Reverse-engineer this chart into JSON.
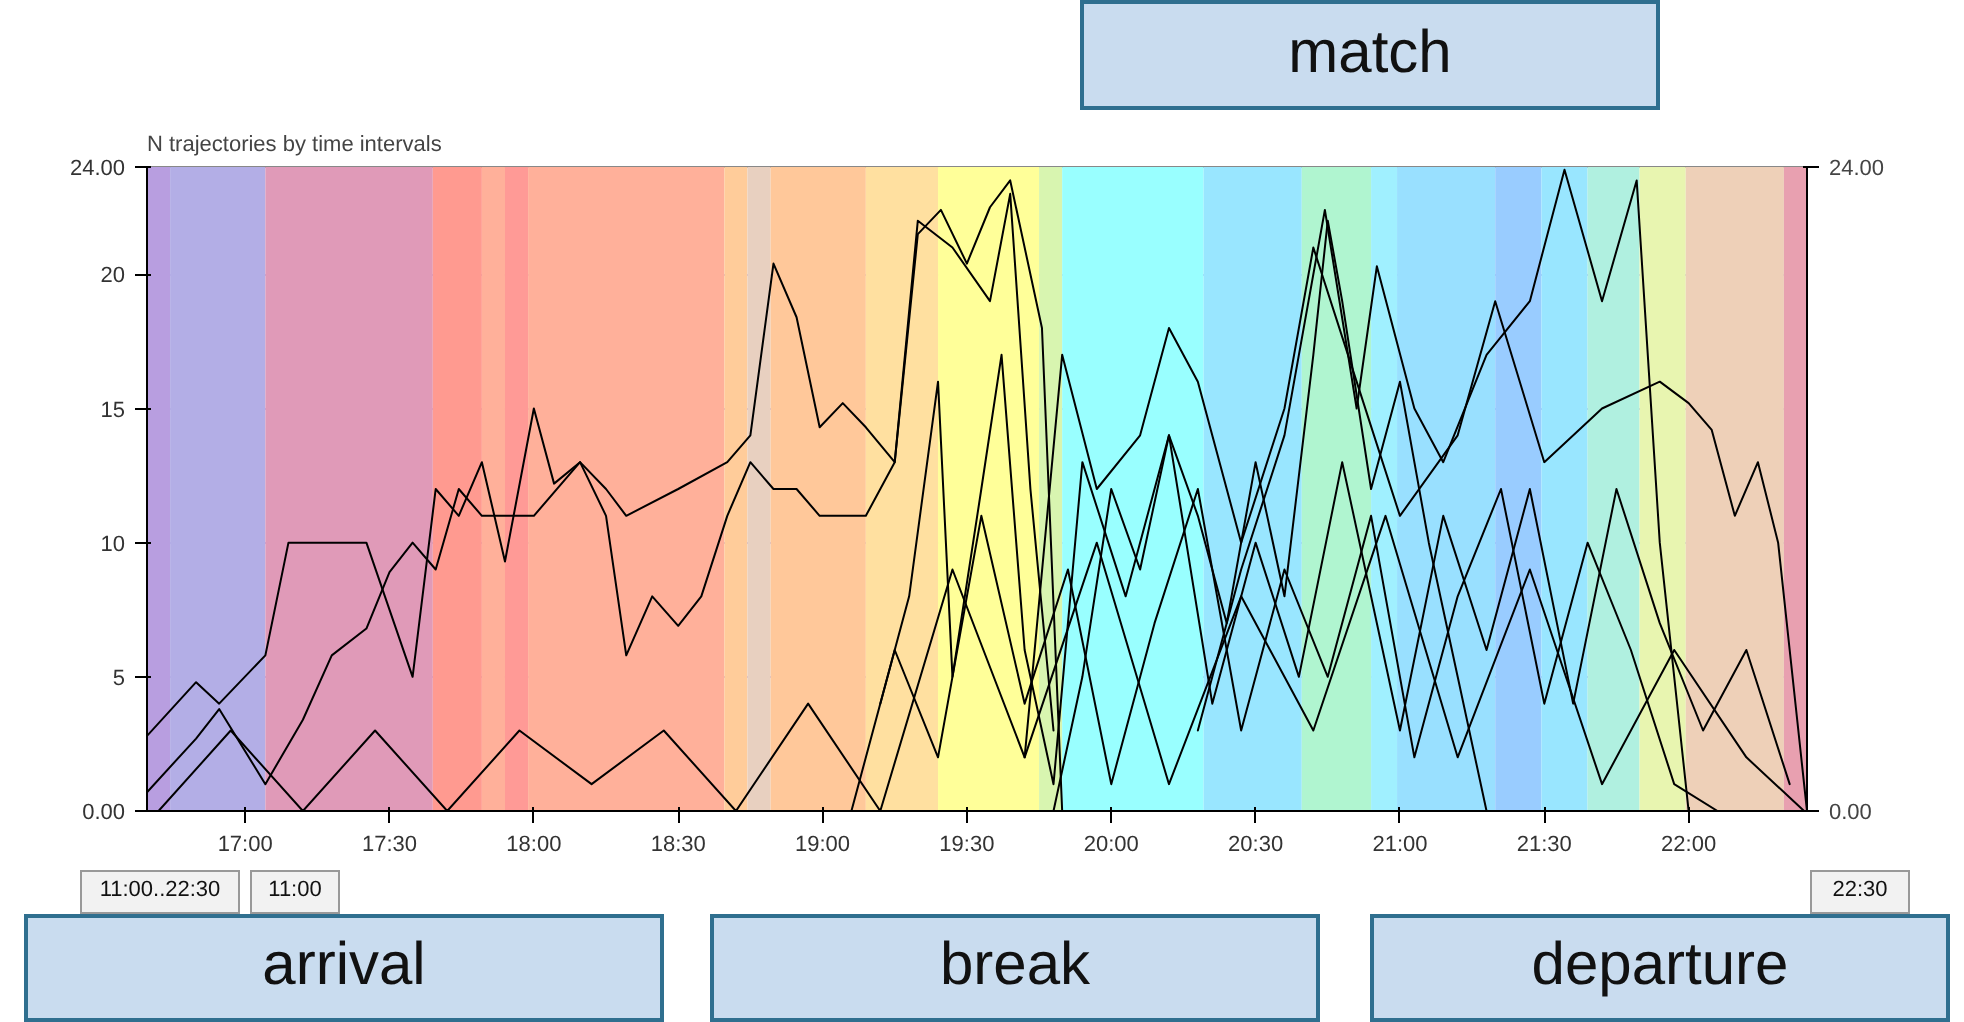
{
  "chart_data": {
    "type": "line",
    "title": "N trajectories by time intervals",
    "xlim": [
      16.66,
      22.41
    ],
    "ylim": [
      0,
      24
    ],
    "y2lim": [
      0,
      24
    ],
    "xticks": [
      {
        "value": 17,
        "label": "17:00"
      },
      {
        "value": 17.5,
        "label": "17:30"
      },
      {
        "value": 18,
        "label": "18:00"
      },
      {
        "value": 18.5,
        "label": "18:30"
      },
      {
        "value": 19,
        "label": "19:00"
      },
      {
        "value": 19.5,
        "label": "19:30"
      },
      {
        "value": 20,
        "label": "20:00"
      },
      {
        "value": 20.5,
        "label": "20:30"
      },
      {
        "value": 21,
        "label": "21:00"
      },
      {
        "value": 21.5,
        "label": "21:30"
      },
      {
        "value": 22,
        "label": "22:00"
      }
    ],
    "yticks": [
      {
        "value": 0,
        "label": "0.00"
      },
      5,
      10,
      15,
      20,
      {
        "value": 24,
        "label": "24.00"
      }
    ],
    "y2ticks": [
      {
        "value": 0,
        "label": "0.00"
      },
      {
        "value": 24,
        "label": "24.00"
      }
    ],
    "grid": "y",
    "series": [
      {
        "color": "#000000",
        "x": [
          16.66,
          16.83,
          16.91,
          17.07,
          17.15,
          17.42,
          17.58,
          17.66,
          17.74,
          17.82,
          17.9,
          18.0,
          18.07,
          18.16,
          18.25,
          18.32,
          18.41,
          18.5,
          18.58,
          18.67,
          18.75,
          18.83,
          18.91,
          18.99,
          19.15,
          19.25,
          19.33,
          19.41,
          19.5,
          19.58,
          19.65,
          19.76,
          19.83
        ],
        "values": [
          2.8,
          4.8,
          4,
          5.8,
          10,
          10,
          5,
          12,
          11,
          13,
          9.3,
          15,
          12.2,
          13,
          11,
          5.8,
          8,
          6.9,
          8,
          11,
          13,
          12,
          12,
          11,
          11,
          13,
          21.5,
          22.4,
          20.4,
          22.5,
          23.5,
          18,
          0
        ]
      },
      {
        "color": "#000000",
        "x": [
          16.66,
          16.83,
          16.91,
          17.07,
          17.2,
          17.3,
          17.42,
          17.5,
          17.58,
          17.66,
          17.74,
          17.82,
          17.9,
          18.0,
          18.16,
          18.25,
          18.32,
          18.5,
          18.67,
          18.75,
          18.83,
          18.91,
          18.99,
          19.07,
          19.15,
          19.25,
          19.33,
          19.45,
          19.58,
          19.65,
          19.72,
          19.8
        ],
        "values": [
          0.7,
          2.7,
          3.8,
          1,
          3.4,
          5.8,
          6.8,
          8.9,
          10,
          9,
          12,
          11,
          11,
          11,
          13,
          12,
          11,
          12,
          13,
          14,
          20.4,
          18.4,
          14.3,
          15.2,
          14.3,
          13,
          22,
          21,
          19,
          23,
          12,
          3
        ]
      },
      {
        "color": "#000000",
        "x": [
          19.8,
          19.9,
          20.0,
          20.1,
          20.2,
          20.3,
          20.4,
          20.5,
          20.6,
          20.7,
          20.75,
          20.8,
          20.9,
          21.0,
          21.1,
          21.2,
          21.3
        ],
        "values": [
          0,
          5,
          12,
          9,
          14,
          11,
          7,
          13,
          8,
          17,
          22,
          19,
          12,
          16,
          10,
          5,
          0
        ]
      },
      {
        "color": "#000000",
        "x": [
          20.3,
          20.45,
          20.6,
          20.74,
          20.85,
          20.92,
          21.05,
          21.15,
          21.3,
          21.45,
          21.57,
          21.7,
          21.82,
          21.9,
          22.0
        ],
        "values": [
          3,
          9,
          14,
          22.4,
          15,
          20.3,
          15,
          13,
          17,
          19,
          23.9,
          19,
          23.5,
          10,
          0
        ]
      },
      {
        "color": "#000000",
        "x": [
          19.7,
          19.83,
          19.95,
          20.1,
          20.2,
          20.3,
          20.45,
          20.6,
          20.7,
          20.85,
          21.0,
          21.2,
          21.33,
          21.5,
          21.7,
          21.9,
          22.0,
          22.08,
          22.16,
          22.24,
          22.31,
          22.41
        ],
        "values": [
          2,
          17,
          12,
          14,
          18,
          16,
          10,
          15,
          21,
          16,
          11,
          14,
          19,
          13,
          15,
          16,
          15.2,
          14.2,
          11,
          13,
          10,
          0
        ]
      },
      {
        "color": "#000000",
        "x": [
          19.2,
          19.3,
          19.4,
          19.45,
          19.55,
          19.62,
          19.7,
          19.8,
          19.9,
          20.05,
          20.2,
          20.35,
          20.5,
          20.65,
          20.8,
          21.0,
          21.15,
          21.3,
          21.45,
          21.6,
          21.75,
          21.9,
          22.05,
          22.2,
          22.35
        ],
        "values": [
          4,
          8,
          16,
          5,
          12,
          17,
          6,
          1,
          13,
          8,
          14,
          4,
          10,
          5,
          13,
          3,
          11,
          6,
          12,
          4,
          12,
          7,
          3,
          6,
          1
        ]
      },
      {
        "color": "#000000",
        "x": [
          16.7,
          16.95,
          17.2,
          17.45,
          17.7,
          17.95,
          18.2,
          18.45,
          18.7,
          18.95,
          19.2,
          19.45,
          19.7,
          19.95,
          20.2,
          20.45,
          20.7,
          20.95,
          21.2,
          21.45,
          21.7,
          21.95,
          22.2,
          22.4
        ],
        "values": [
          0,
          3,
          0,
          3,
          0,
          3,
          1,
          3,
          0,
          4,
          0,
          9,
          2,
          10,
          1,
          8,
          3,
          11,
          2,
          9,
          1,
          6,
          2,
          0
        ]
      },
      {
        "color": "#000000",
        "x": [
          19.1,
          19.25,
          19.4,
          19.55,
          19.7,
          19.85,
          20.0,
          20.15,
          20.3,
          20.45,
          20.6,
          20.75,
          20.9,
          21.05,
          21.2,
          21.35,
          21.5,
          21.65,
          21.8,
          21.95,
          22.1
        ],
        "values": [
          0,
          6,
          2,
          11,
          4,
          9,
          1,
          7,
          12,
          3,
          9,
          5,
          11,
          2,
          8,
          12,
          4,
          10,
          6,
          1,
          0
        ]
      }
    ],
    "bands": [
      {
        "axis": "x",
        "from": 16.66,
        "to": 16.74,
        "color": "#b89ee0"
      },
      {
        "axis": "x",
        "from": 16.74,
        "to": 17.07,
        "color": "#b3aee6"
      },
      {
        "axis": "x",
        "from": 17.07,
        "to": 17.65,
        "color": "#e09ab8"
      },
      {
        "axis": "x",
        "from": 17.65,
        "to": 17.82,
        "color": "#ff9a90"
      },
      {
        "axis": "x",
        "from": 17.82,
        "to": 17.9,
        "color": "#ffb09a"
      },
      {
        "axis": "x",
        "from": 17.9,
        "to": 17.98,
        "color": "#ff9a96"
      },
      {
        "axis": "x",
        "from": 17.98,
        "to": 18.66,
        "color": "#ffb09a"
      },
      {
        "axis": "x",
        "from": 18.66,
        "to": 18.74,
        "color": "#ffcc9a"
      },
      {
        "axis": "x",
        "from": 18.74,
        "to": 18.82,
        "color": "#e8d0c0"
      },
      {
        "axis": "x",
        "from": 18.82,
        "to": 19.15,
        "color": "#ffc89a"
      },
      {
        "axis": "x",
        "from": 19.15,
        "to": 19.4,
        "color": "#ffe0a0"
      },
      {
        "axis": "x",
        "from": 19.4,
        "to": 19.75,
        "color": "#ffff99"
      },
      {
        "axis": "x",
        "from": 19.75,
        "to": 19.83,
        "color": "#d8f5b0"
      },
      {
        "axis": "x",
        "from": 19.83,
        "to": 20.32,
        "color": "#99ffff"
      },
      {
        "axis": "x",
        "from": 20.32,
        "to": 20.66,
        "color": "#99e6ff"
      },
      {
        "axis": "x",
        "from": 20.66,
        "to": 20.9,
        "color": "#b0f5d0"
      },
      {
        "axis": "x",
        "from": 20.9,
        "to": 20.99,
        "color": "#a0f0ff"
      },
      {
        "axis": "x",
        "from": 20.99,
        "to": 21.33,
        "color": "#99e0ff"
      },
      {
        "axis": "x",
        "from": 21.33,
        "to": 21.49,
        "color": "#99ccff"
      },
      {
        "axis": "x",
        "from": 21.49,
        "to": 21.65,
        "color": "#99e6ff"
      },
      {
        "axis": "x",
        "from": 21.65,
        "to": 21.83,
        "color": "#b0f0e0"
      },
      {
        "axis": "x",
        "from": 21.83,
        "to": 21.99,
        "color": "#e8f5b0"
      },
      {
        "axis": "x",
        "from": 21.99,
        "to": 22.33,
        "color": "#eed0b8"
      },
      {
        "axis": "x",
        "from": 22.33,
        "to": 22.41,
        "color": "#e8a0b0"
      }
    ],
    "annotations": [
      "match",
      "arrival",
      "break",
      "departure",
      "11:00..22:30",
      "11:00",
      "22:30"
    ]
  }
}
